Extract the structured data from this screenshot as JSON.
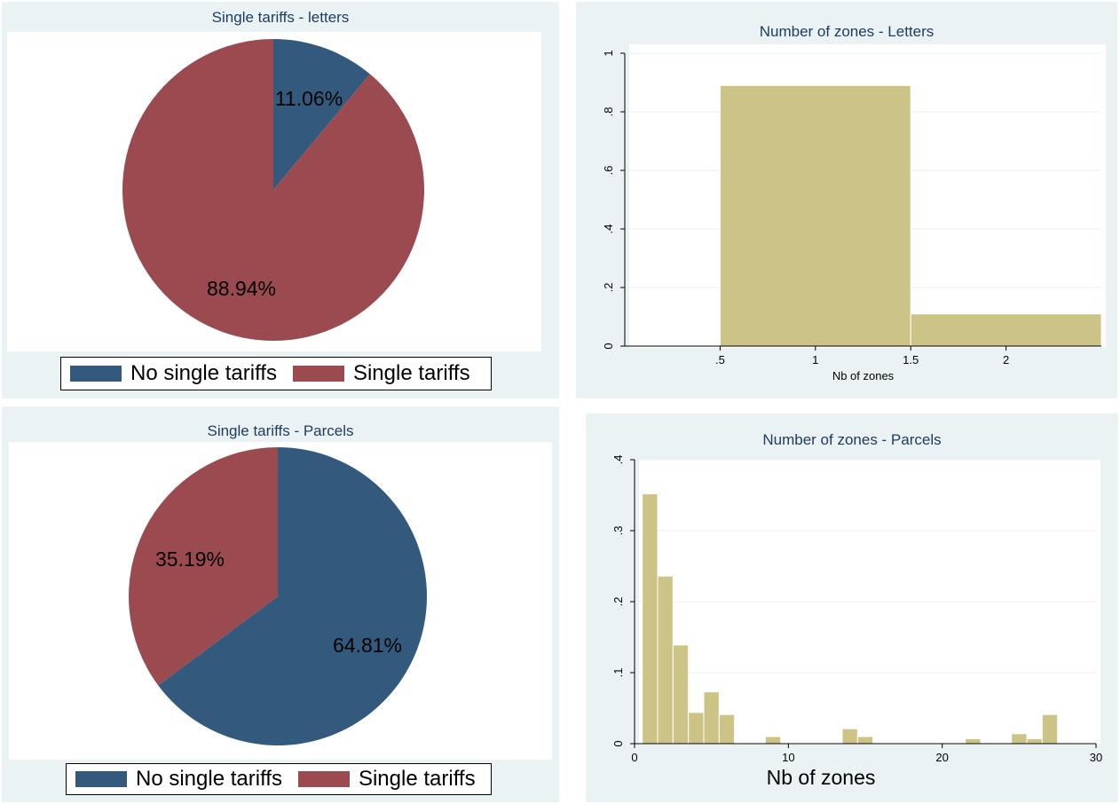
{
  "colors": {
    "navy": "#335a7d",
    "maroon": "#9b4a50",
    "khaki": "#ccc486",
    "panel": "#eaf2f3",
    "title": "#1e3a5f"
  },
  "chart_data": [
    {
      "type": "pie",
      "title": "Single tariffs - letters",
      "slices": [
        {
          "label": "No single tariffs",
          "value": 11.06,
          "text": "11.06%",
          "color": "#335a7d"
        },
        {
          "label": "Single tariffs",
          "value": 88.94,
          "text": "88.94%",
          "color": "#9b4a50"
        }
      ],
      "legend": [
        "No single tariffs",
        "Single tariffs"
      ],
      "legend_position": "bottom"
    },
    {
      "type": "bar",
      "title": "Number of zones - Letters",
      "xlabel": "Nb of zones",
      "ylabel": "",
      "bins": [
        {
          "x0": 0.5,
          "x1": 1.5,
          "value": 0.89
        },
        {
          "x0": 1.5,
          "x1": 2.5,
          "value": 0.11
        }
      ],
      "xlim": [
        0,
        2.5
      ],
      "ylim": [
        0,
        1
      ],
      "xticks": [
        ".5",
        "1",
        "1.5",
        "2"
      ],
      "yticks": [
        "0",
        ".2",
        ".4",
        ".6",
        ".8",
        "1"
      ],
      "grid": true
    },
    {
      "type": "pie",
      "title": "Single tariffs - Parcels",
      "slices": [
        {
          "label": "No single tariffs",
          "value": 64.81,
          "text": "64.81%",
          "color": "#335a7d"
        },
        {
          "label": "Single tariffs",
          "value": 35.19,
          "text": "35.19%",
          "color": "#9b4a50"
        }
      ],
      "legend": [
        "No single tariffs",
        "Single tariffs"
      ],
      "legend_position": "bottom"
    },
    {
      "type": "bar",
      "title": "Number of zones - Parcels",
      "xlabel": "Nb of zones",
      "ylabel": "",
      "bins": [
        {
          "x0": 0.5,
          "x1": 1.5,
          "value": 0.352
        },
        {
          "x0": 1.5,
          "x1": 2.5,
          "value": 0.236
        },
        {
          "x0": 2.5,
          "x1": 3.5,
          "value": 0.139
        },
        {
          "x0": 3.5,
          "x1": 4.5,
          "value": 0.044
        },
        {
          "x0": 4.5,
          "x1": 5.5,
          "value": 0.073
        },
        {
          "x0": 5.5,
          "x1": 6.5,
          "value": 0.041
        },
        {
          "x0": 8.5,
          "x1": 9.5,
          "value": 0.01
        },
        {
          "x0": 13.5,
          "x1": 14.5,
          "value": 0.021
        },
        {
          "x0": 14.5,
          "x1": 15.5,
          "value": 0.01
        },
        {
          "x0": 21.5,
          "x1": 22.5,
          "value": 0.007
        },
        {
          "x0": 24.5,
          "x1": 25.5,
          "value": 0.014
        },
        {
          "x0": 25.5,
          "x1": 26.5,
          "value": 0.007
        },
        {
          "x0": 26.5,
          "x1": 27.5,
          "value": 0.041
        }
      ],
      "xlim": [
        0,
        30
      ],
      "ylim": [
        0,
        0.4
      ],
      "xticks": [
        "0",
        "10",
        "20",
        "30"
      ],
      "yticks": [
        "0",
        ".1",
        ".2",
        ".3",
        ".4"
      ],
      "grid": true
    }
  ]
}
